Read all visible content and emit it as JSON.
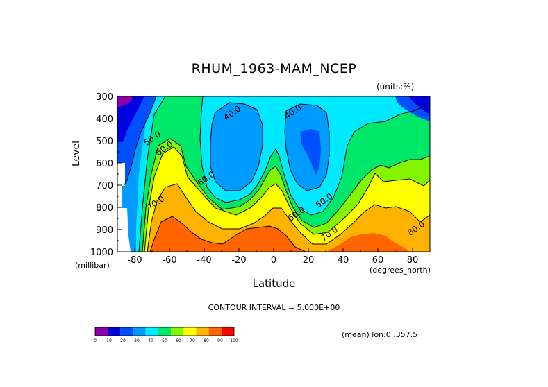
{
  "chart_data": {
    "type": "heatmap",
    "title": "RHUM_1963-MAM_NCEP",
    "units_label": "(units:%)",
    "ylabel": "Level",
    "yunit": "(millibar)",
    "xlabel": "Latitude",
    "xunit": "(degrees_north)",
    "contour_interval_label": "CONTOUR INTERVAL = 5.000E+00",
    "mean_label": "(mean) lon:0..357.5",
    "xlim": [
      -90,
      90
    ],
    "ylim": [
      1000,
      300
    ],
    "xticks": [
      -80,
      -60,
      -40,
      -20,
      0,
      20,
      40,
      60,
      80
    ],
    "yticks": [
      300,
      400,
      500,
      600,
      700,
      800,
      900,
      1000
    ],
    "contour_labels": [
      {
        "text": "40.0",
        "lat": -23,
        "lev": 385
      },
      {
        "text": "40.0",
        "lat": 12,
        "lev": 380
      },
      {
        "text": "50.0",
        "lat": -69,
        "lev": 500
      },
      {
        "text": "60.0",
        "lat": -62,
        "lev": 545
      },
      {
        "text": "60.0",
        "lat": -38,
        "lev": 680
      },
      {
        "text": "70.0",
        "lat": -67,
        "lev": 790
      },
      {
        "text": "60.0",
        "lat": 14,
        "lev": 840
      },
      {
        "text": "50.0",
        "lat": 30,
        "lev": 780
      },
      {
        "text": "70.0",
        "lat": 33,
        "lev": 930
      },
      {
        "text": "80.0",
        "lat": 83,
        "lev": 905
      }
    ],
    "colorbar": {
      "ticks": [
        "0",
        "10",
        "20",
        "30",
        "40",
        "50",
        "60",
        "70",
        "80",
        "90",
        "100"
      ],
      "colors": [
        "#8b00aa",
        "#0000e1",
        "#0050ff",
        "#009bff",
        "#00e9ff",
        "#00e86a",
        "#84f500",
        "#ffff00",
        "#ffb200",
        "#ff6400",
        "#ff0000"
      ]
    },
    "grid": false
  }
}
